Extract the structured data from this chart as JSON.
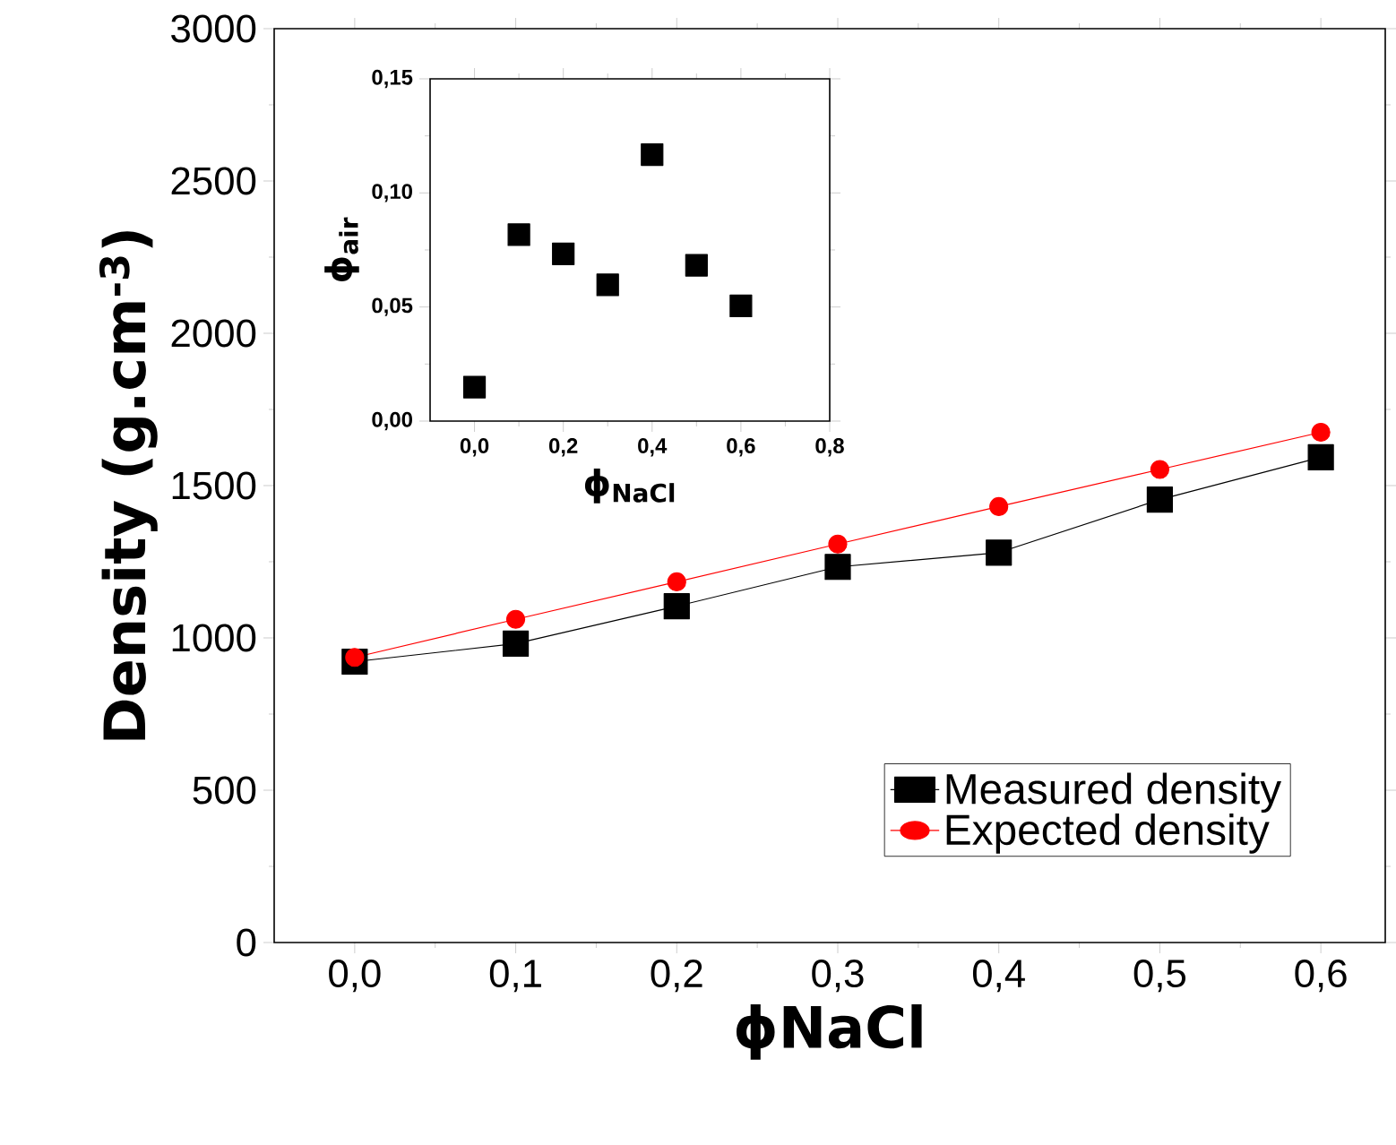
{
  "chart_data": [
    {
      "type": "line",
      "xlabel": "ϕNaCl",
      "ylabel": "Density (g.cm$^{-3}$)",
      "x": [
        0,
        0.1,
        0.2,
        0.3,
        0.4,
        0.5,
        0.6
      ],
      "series": [
        {
          "name": "Measured density",
          "color": "#000000",
          "marker": "square",
          "values": [
            922,
            981,
            1104,
            1233,
            1280,
            1454,
            1593
          ]
        },
        {
          "name": "Expected density",
          "color": "#ff0000",
          "marker": "circle",
          "values": [
            936,
            1061,
            1184,
            1308,
            1431,
            1553,
            1675
          ]
        }
      ],
      "xlim": [
        -0.05,
        0.64
      ],
      "ylim": [
        0,
        3000
      ],
      "xticks": [
        {
          "value": 0,
          "label": "0,0"
        },
        {
          "value": 0.1,
          "label": "0,1"
        },
        {
          "value": 0.2,
          "label": "0,2"
        },
        {
          "value": 0.3,
          "label": "0,3"
        },
        {
          "value": 0.4,
          "label": "0,4"
        },
        {
          "value": 0.5,
          "label": "0,5"
        },
        {
          "value": 0.6,
          "label": "0,6"
        }
      ],
      "yticks": [
        0,
        500,
        1000,
        1500,
        2000,
        2500,
        3000
      ],
      "legend": "bottom right",
      "grid": false
    },
    {
      "type": "scatter",
      "xlabel": "ϕ$_{NaCl}$",
      "ylabel": "ϕ$_{air}$",
      "x": [
        0,
        0.1,
        0.2,
        0.3,
        0.4,
        0.5,
        0.6
      ],
      "series": [
        {
          "color": "#000000",
          "marker": "square",
          "values": [
            0.0149,
            0.0817,
            0.0733,
            0.0597,
            0.1168,
            0.0683,
            0.0505
          ]
        }
      ],
      "xlim": [
        -0.1,
        0.8
      ],
      "ylim": [
        0,
        0.15
      ],
      "xticks": [
        {
          "value": 0,
          "label": "0,0"
        },
        {
          "value": 0.2,
          "label": "0,2"
        },
        {
          "value": 0.4,
          "label": "0,4"
        },
        {
          "value": 0.6,
          "label": "0,6"
        },
        {
          "value": 0.8,
          "label": "0,8"
        }
      ],
      "yticks": [
        {
          "value": 0,
          "label": "0,00"
        },
        {
          "value": 0.05,
          "label": "0,05"
        },
        {
          "value": 0.1,
          "label": "0,10"
        },
        {
          "value": 0.15,
          "label": "0,15"
        }
      ],
      "legend": false,
      "grid": false
    }
  ]
}
